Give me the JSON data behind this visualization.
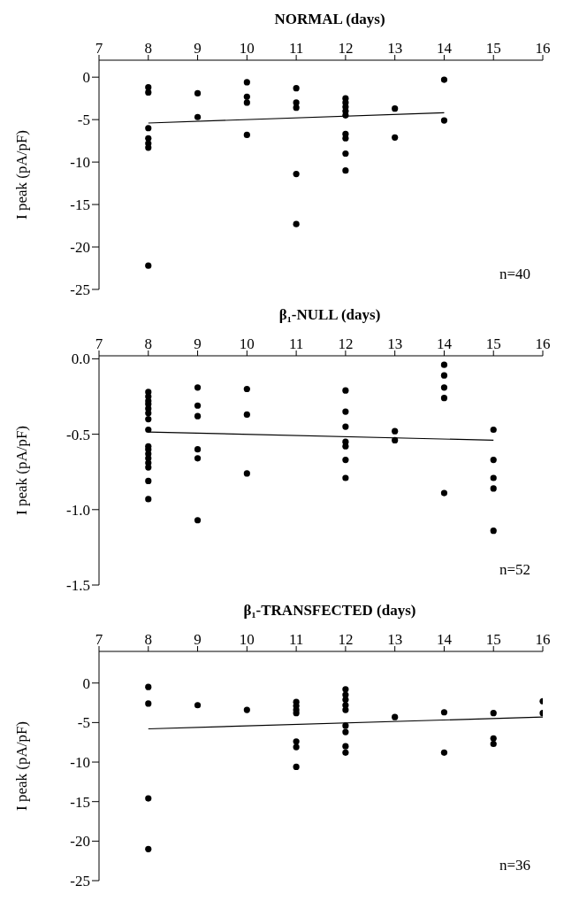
{
  "chart_data": [
    {
      "type": "scatter",
      "title": "NORMAL (days)",
      "ylabel": "I peak (pA/pF)",
      "annotations": [
        "n=40"
      ],
      "xlim": [
        7,
        16
      ],
      "xticks": [
        7,
        8,
        9,
        10,
        11,
        12,
        13,
        14,
        15,
        16
      ],
      "ylim": [
        -25,
        2
      ],
      "yticks": [
        0,
        -5,
        -10,
        -15,
        -20,
        -25
      ],
      "series": [
        {
          "marker": "circle",
          "color": "#000000",
          "x": [
            8,
            8,
            8,
            8,
            8,
            8,
            8,
            9,
            9,
            10,
            10,
            10,
            10,
            11,
            11,
            11,
            11,
            11,
            12,
            12,
            12,
            12,
            12,
            12,
            12,
            12,
            12,
            13,
            13,
            14,
            14
          ],
          "values": [
            -1.2,
            -1.8,
            -6,
            -7.2,
            -7.8,
            -8.3,
            -22.2,
            -1.9,
            -4.7,
            -0.6,
            -2.3,
            -3,
            -6.8,
            -1.3,
            -3,
            -3.6,
            -11.4,
            -17.3,
            -2.5,
            -3,
            -3.5,
            -4,
            -4.5,
            -6.7,
            -7.2,
            -9,
            -11,
            -3.7,
            -7.1,
            -0.3,
            -5.1
          ]
        },
        {
          "type": "line",
          "marker": "none",
          "color": "#000000",
          "x": [
            8,
            14
          ],
          "values": [
            -5.4,
            -4.2
          ]
        }
      ]
    },
    {
      "type": "scatter",
      "title": "β₁-NULL (days)",
      "ylabel": "I peak (pA/pF)",
      "annotations": [
        "n=52"
      ],
      "xlim": [
        7,
        16
      ],
      "xticks": [
        7,
        8,
        9,
        10,
        11,
        12,
        13,
        14,
        15,
        16
      ],
      "ylim": [
        -1.5,
        0.02
      ],
      "yticks": [
        {
          "value": 0,
          "label": "0.0"
        },
        {
          "value": -0.5,
          "label": "-0.5"
        },
        {
          "value": -1,
          "label": "-1.0"
        },
        {
          "value": -1.5,
          "label": "-1.5"
        }
      ],
      "series": [
        {
          "marker": "circle",
          "color": "#000000",
          "x": [
            8,
            8,
            8,
            8,
            8,
            8,
            8,
            8,
            8,
            8,
            8,
            8,
            8,
            8,
            8,
            8,
            9,
            9,
            9,
            9,
            9,
            9,
            10,
            10,
            10,
            12,
            12,
            12,
            12,
            12,
            12,
            12,
            13,
            13,
            14,
            14,
            14,
            14,
            14,
            15,
            15,
            15,
            15,
            15
          ],
          "values": [
            -0.22,
            -0.25,
            -0.28,
            -0.3,
            -0.33,
            -0.36,
            -0.4,
            -0.47,
            -0.58,
            -0.6,
            -0.63,
            -0.66,
            -0.69,
            -0.72,
            -0.81,
            -0.93,
            -0.19,
            -0.31,
            -0.38,
            -0.6,
            -0.66,
            -1.07,
            -0.2,
            -0.37,
            -0.76,
            -0.21,
            -0.35,
            -0.45,
            -0.55,
            -0.58,
            -0.67,
            -0.79,
            -0.48,
            -0.54,
            -0.04,
            -0.11,
            -0.19,
            -0.26,
            -0.89,
            -0.47,
            -0.67,
            -0.79,
            -0.86,
            -1.14
          ]
        },
        {
          "type": "line",
          "marker": "none",
          "color": "#000000",
          "x": [
            8,
            15
          ],
          "values": [
            -0.485,
            -0.54
          ]
        }
      ]
    },
    {
      "type": "scatter",
      "title": "β₁-TRANSFECTED (days)",
      "ylabel": "I peak (pA/pF)",
      "annotations": [
        "n=36"
      ],
      "xlim": [
        7,
        16
      ],
      "xticks": [
        7,
        8,
        9,
        10,
        11,
        12,
        13,
        14,
        15,
        16
      ],
      "ylim": [
        -25,
        4
      ],
      "yticks": [
        0,
        -5,
        -10,
        -15,
        -20,
        -25
      ],
      "series": [
        {
          "marker": "circle",
          "color": "#000000",
          "x": [
            8,
            8,
            8,
            8,
            9,
            10,
            11,
            11,
            11,
            11,
            11,
            11,
            11,
            12,
            12,
            12,
            12,
            12,
            12,
            12,
            12,
            12,
            13,
            14,
            14,
            15,
            15,
            15,
            16,
            16
          ],
          "values": [
            -0.5,
            -2.6,
            -14.6,
            -21,
            -2.8,
            -3.4,
            -2.4,
            -2.9,
            -3.4,
            -3.8,
            -7.4,
            -8.1,
            -10.6,
            -0.8,
            -1.5,
            -2.1,
            -2.8,
            -3.4,
            -5.4,
            -6.2,
            -8,
            -8.8,
            -4.3,
            -3.7,
            -8.8,
            -3.8,
            -7,
            -7.7,
            -2.3,
            -3.8
          ]
        },
        {
          "type": "line",
          "marker": "none",
          "color": "#000000",
          "x": [
            8,
            16
          ],
          "values": [
            -5.8,
            -4.3
          ]
        }
      ]
    }
  ]
}
